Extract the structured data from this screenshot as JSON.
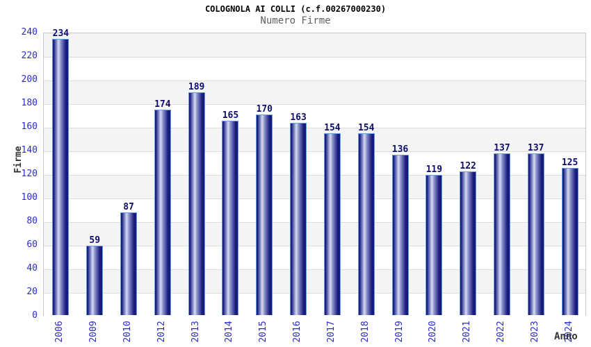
{
  "chart_data": {
    "type": "bar",
    "title": "COLOGNOLA AI COLLI (c.f.00267000230)",
    "subtitle": "Numero Firme",
    "xlabel": "Anno",
    "ylabel": "Firme",
    "categories": [
      "2006",
      "2009",
      "2010",
      "2012",
      "2013",
      "2014",
      "2015",
      "2016",
      "2017",
      "2018",
      "2019",
      "2020",
      "2021",
      "2022",
      "2023",
      "2024"
    ],
    "values": [
      234,
      59,
      87,
      174,
      189,
      165,
      170,
      163,
      154,
      154,
      136,
      119,
      122,
      137,
      137,
      125
    ],
    "ylim": [
      0,
      240
    ],
    "ytick_step": 20,
    "yticks": [
      0,
      20,
      40,
      60,
      80,
      100,
      120,
      140,
      160,
      180,
      200,
      220,
      240
    ],
    "grid": true,
    "legend": "none",
    "bar_value_labels_shown": true,
    "x_tick_rotation_deg": -90
  },
  "colors": {
    "title": "#000000",
    "subtitle": "#606060",
    "axis_title": "#333333",
    "tick_label": "#2b2bc8",
    "bar_value_label": "#0d0d6e",
    "bar_dark": "#1a1a7c",
    "bar_mid": "#8a92cc",
    "bar_highlight": "#d9dcf1",
    "bar_border": "#5f9fdf",
    "band_shade": "#f4f4f4",
    "band_plain": "#ffffff",
    "gridline": "#dcdcdc",
    "plot_border": "#c8c8c8"
  }
}
